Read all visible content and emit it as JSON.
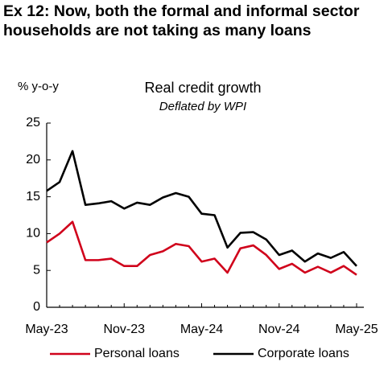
{
  "chart_data": {
    "type": "line",
    "title": "Ex 12: Now, both the formal and informal sector households are not taking as many loans",
    "y_label": "% y-o-y",
    "chart_title": "Real credit growth",
    "subtitle": "Deflated by WPI",
    "categories": [
      "May-23",
      null,
      null,
      null,
      null,
      null,
      "Nov-23",
      null,
      null,
      null,
      null,
      null,
      "May-24",
      null,
      null,
      null,
      null,
      null,
      "Nov-24",
      null,
      null,
      null,
      null,
      null,
      "May-25"
    ],
    "series": [
      {
        "name": "Personal loans",
        "color": "#d0021b",
        "values": [
          8.8,
          10.0,
          11.6,
          6.4,
          6.4,
          6.6,
          5.6,
          5.6,
          7.1,
          7.6,
          8.6,
          8.3,
          6.2,
          6.6,
          4.7,
          8.0,
          8.4,
          7.1,
          5.2,
          5.9,
          4.7,
          5.5,
          4.7,
          5.6,
          4.4
        ]
      },
      {
        "name": "Corporate loans",
        "color": "#000000",
        "values": [
          15.8,
          17.0,
          21.2,
          13.9,
          14.1,
          14.4,
          13.4,
          14.2,
          13.9,
          14.9,
          15.5,
          15.0,
          12.7,
          12.5,
          8.1,
          10.1,
          10.2,
          9.2,
          7.1,
          7.7,
          6.2,
          7.3,
          6.7,
          7.5,
          5.6
        ]
      }
    ],
    "ylim": [
      0,
      25
    ],
    "yticks": [
      0,
      5,
      10,
      15,
      20,
      25
    ],
    "legend": "bottom"
  }
}
